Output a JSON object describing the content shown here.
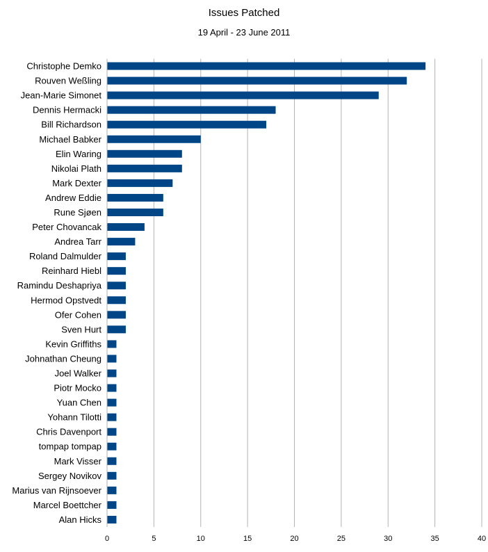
{
  "chart_data": {
    "type": "bar",
    "orientation": "horizontal",
    "title": "Issues Patched",
    "subtitle": "19 April - 23 June 2011",
    "categories": [
      "Christophe Demko",
      "Rouven Weßling",
      "Jean-Marie Simonet",
      "Dennis Hermacki",
      "Bill Richardson",
      "Michael Babker",
      "Elin Waring",
      "Nikolai Plath",
      "Mark Dexter",
      "Andrew Eddie",
      "Rune Sjøen",
      "Peter Chovancak",
      "Andrea Tarr",
      "Roland Dalmulder",
      "Reinhard Hiebl",
      "Ramindu Deshapriya",
      "Hermod Opstvedt",
      "Ofer Cohen",
      "Sven Hurt",
      "Kevin Griffiths",
      "Johnathan Cheung",
      "Joel Walker",
      "Piotr Mocko",
      "Yuan Chen",
      "Yohann Tilotti",
      "Chris Davenport",
      "tompap tompap",
      "Mark Visser",
      "Sergey Novikov",
      "Marius van Rijnsoever",
      "Marcel Boettcher",
      "Alan Hicks"
    ],
    "values": [
      34,
      32,
      29,
      18,
      17,
      10,
      8,
      8,
      7,
      6,
      6,
      4,
      3,
      2,
      2,
      2,
      2,
      2,
      2,
      1,
      1,
      1,
      1,
      1,
      1,
      1,
      1,
      1,
      1,
      1,
      1,
      1
    ],
    "xlim": [
      0,
      40
    ],
    "xticks": [
      0,
      5,
      10,
      15,
      20,
      25,
      30,
      35,
      40
    ],
    "grid": "vertical",
    "legend": "none",
    "bar_color": "#004586"
  }
}
